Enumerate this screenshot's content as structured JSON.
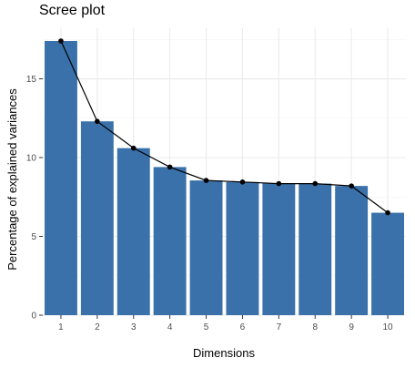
{
  "chart_data": {
    "type": "bar",
    "title": "Scree plot",
    "xlabel": "Dimensions",
    "ylabel": "Percentage of explained variances",
    "categories": [
      "1",
      "2",
      "3",
      "4",
      "5",
      "6",
      "7",
      "8",
      "9",
      "10"
    ],
    "values": [
      17.4,
      12.3,
      10.6,
      9.4,
      8.55,
      8.45,
      8.35,
      8.35,
      8.2,
      6.5
    ],
    "overlay_line": true,
    "ylim": [
      0,
      18
    ],
    "yticks": [
      0,
      5,
      10,
      15
    ],
    "grid": true,
    "colors": {
      "bar": "#3A71AA",
      "line": "#000000",
      "panel": "#FFFFFF",
      "grid": "#EBEBEB"
    }
  }
}
